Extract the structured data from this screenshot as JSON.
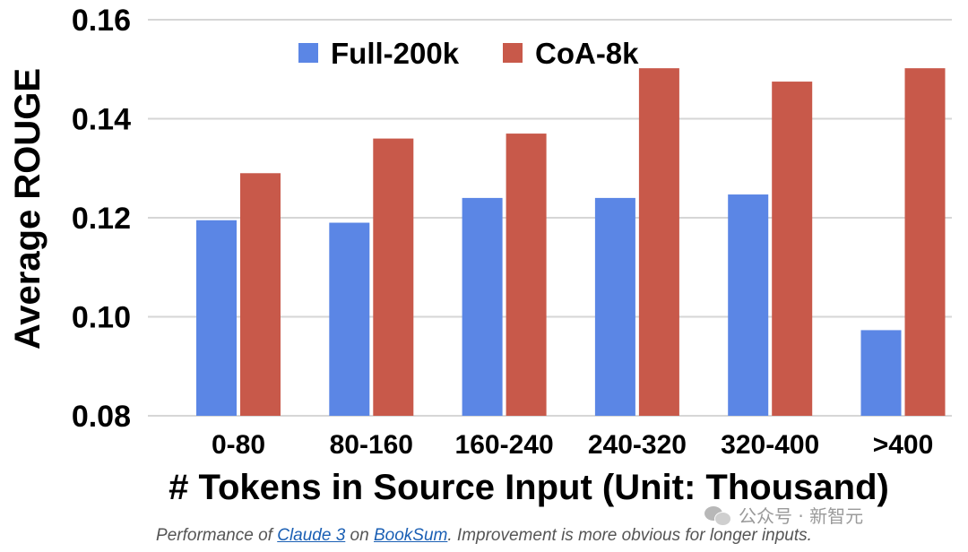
{
  "chart_data": {
    "type": "bar",
    "title": "",
    "xlabel": "# Tokens in Source Input (Unit: Thousand)",
    "ylabel": "Average ROUGE",
    "ylim": [
      0.08,
      0.16
    ],
    "yticks": [
      "0.08",
      "0.10",
      "0.12",
      "0.14",
      "0.16"
    ],
    "grid": true,
    "legend_position": "top-center",
    "categories": [
      "0-80",
      "80-160",
      "160-240",
      "240-320",
      "320-400",
      ">400"
    ],
    "series": [
      {
        "name": "Full-200k",
        "color": "#5b86e5",
        "values": [
          0.1195,
          0.119,
          0.124,
          0.124,
          0.1247,
          0.0973
        ]
      },
      {
        "name": "CoA-8k",
        "color": "#c8594a",
        "values": [
          0.129,
          0.136,
          0.137,
          0.1502,
          0.1475,
          0.1502
        ]
      }
    ]
  },
  "caption": {
    "prefix": "Performance of ",
    "link1": "Claude 3",
    "middle": " on ",
    "link2": "BookSum",
    "suffix": ". Improvement is more obvious for longer inputs."
  },
  "watermark": "公众号 · 新智元",
  "watermark_icon": "wechat-icon"
}
